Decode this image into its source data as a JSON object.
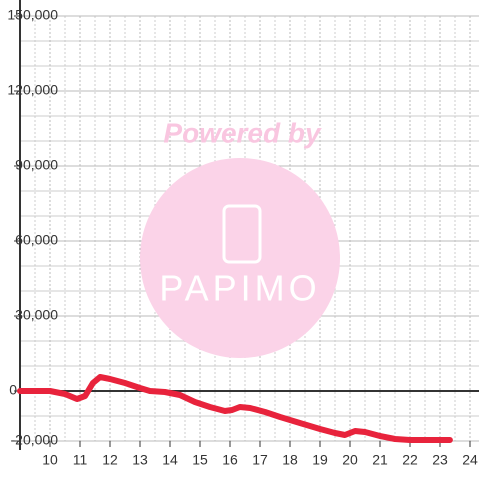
{
  "watermark": {
    "caption": "Powered by",
    "logo": "PAPIMO"
  },
  "chart_data": {
    "type": "line",
    "xlim": [
      9,
      24.3
    ],
    "ylim": [
      -20000,
      150000
    ],
    "xticks": [
      10,
      11,
      12,
      13,
      14,
      15,
      16,
      17,
      18,
      19,
      20,
      21,
      22,
      23,
      24
    ],
    "yticks": [
      {
        "value": -20000,
        "label": "-20,000"
      },
      0,
      {
        "value": 30000,
        "label": "30,000"
      },
      {
        "value": 60000,
        "label": "60,000"
      },
      {
        "value": 90000,
        "label": "90,000"
      },
      {
        "value": 120000,
        "label": "120,000"
      },
      {
        "value": 150000,
        "label": "150,000"
      }
    ],
    "x_minor_ticks": [
      9.5,
      10.5,
      11.5,
      12.5,
      13.5,
      14.5,
      15.5,
      16.5,
      17.5,
      18.5,
      19.5,
      20.5,
      21.5,
      22.5,
      23.5
    ],
    "y_minor_ticks": [
      -10000,
      10000,
      20000,
      40000,
      50000,
      70000,
      80000,
      100000,
      110000,
      130000,
      140000
    ],
    "grid": true,
    "series": [
      {
        "color": "#e8233c",
        "x": [
          9.0,
          10.0,
          10.5,
          10.9,
          11.17,
          11.43,
          11.67,
          12.0,
          12.5,
          13.0,
          13.33,
          13.83,
          14.33,
          14.83,
          15.33,
          15.83,
          16.07,
          16.33,
          16.67,
          17.17,
          17.67,
          18.33,
          19.0,
          19.5,
          19.83,
          20.0,
          20.17,
          20.5,
          21.0,
          21.5,
          22.0,
          22.67,
          23.33
        ],
        "values": [
          0,
          0,
          -1200,
          -3200,
          -2000,
          3200,
          5600,
          4800,
          3200,
          1200,
          0,
          -400,
          -1600,
          -4400,
          -6400,
          -8000,
          -7600,
          -6400,
          -6800,
          -8400,
          -10400,
          -12800,
          -15200,
          -16800,
          -17600,
          -16800,
          -16000,
          -16400,
          -18000,
          -19200,
          -19600,
          -19600,
          -19600
        ]
      }
    ]
  }
}
